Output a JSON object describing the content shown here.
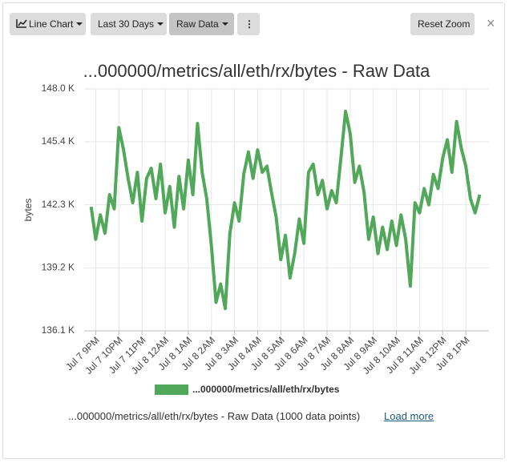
{
  "toolbar": {
    "buttons": [
      "Line Chart",
      "Last 30 Days",
      "Raw Data"
    ],
    "reset": "Reset Zoom"
  },
  "chart_data": {
    "type": "line",
    "title": "...000000/metrics/all/eth/rx/bytes - Raw Data",
    "y_label": "bytes",
    "xlim": [
      -0.5,
      17
    ],
    "xticks": [
      {
        "value": 0,
        "label": "Jul 7 9PM"
      },
      {
        "value": 1,
        "label": "Jul 7 10PM"
      },
      {
        "value": 2,
        "label": "Jul 7 11PM"
      },
      {
        "value": 3,
        "label": "Jul 8 12AM"
      },
      {
        "value": 4,
        "label": "Jul 8 1AM"
      },
      {
        "value": 5,
        "label": "Jul 8 2AM"
      },
      {
        "value": 6,
        "label": "Jul 8 3AM"
      },
      {
        "value": 7,
        "label": "Jul 8 4AM"
      },
      {
        "value": 8,
        "label": "Jul 8 5AM"
      },
      {
        "value": 9,
        "label": "Jul 8 6AM"
      },
      {
        "value": 10,
        "label": "Jul 8 7AM"
      },
      {
        "value": 11,
        "label": "Jul 8 8AM"
      },
      {
        "value": 12,
        "label": "Jul 8 9AM"
      },
      {
        "value": 13,
        "label": "Jul 8 10AM"
      },
      {
        "value": 14,
        "label": "Jul 8 11AM"
      },
      {
        "value": 15,
        "label": "Jul 8 12PM"
      },
      {
        "value": 16,
        "label": "Jul 8 1PM"
      }
    ],
    "ylim": [
      136100,
      148000
    ],
    "yticks": [
      {
        "value": 136100,
        "label": "136.1 K"
      },
      {
        "value": 139200,
        "label": "139.2 K"
      },
      {
        "value": 142300,
        "label": "142.3 K"
      },
      {
        "value": 145400,
        "label": "145.4 K"
      },
      {
        "value": 148000,
        "label": "148.0 K"
      }
    ],
    "grid": true,
    "x": [
      -0.2,
      0,
      0.2,
      0.4,
      0.6,
      0.8,
      1,
      1.2,
      1.4,
      1.6,
      1.8,
      2,
      2.2,
      2.4,
      2.6,
      2.8,
      3,
      3.2,
      3.4,
      3.6,
      3.8,
      4,
      4.2,
      4.4,
      4.6,
      4.8,
      5,
      5.2,
      5.4,
      5.6,
      5.8,
      6,
      6.2,
      6.4,
      6.6,
      6.8,
      7,
      7.2,
      7.4,
      7.6,
      7.8,
      8,
      8.2,
      8.4,
      8.6,
      8.8,
      9,
      9.2,
      9.4,
      9.6,
      9.8,
      10,
      10.2,
      10.4,
      10.6,
      10.8,
      11,
      11.2,
      11.4,
      11.6,
      11.8,
      12,
      12.2,
      12.4,
      12.6,
      12.8,
      13,
      13.2,
      13.4,
      13.6,
      13.8,
      14,
      14.2,
      14.4,
      14.6,
      14.8,
      15,
      15.2,
      15.4,
      15.6,
      15.8,
      16,
      16.2,
      16.4,
      16.6
    ],
    "series": [
      {
        "name": "...000000/metrics/all/eth/rx/bytes",
        "color": "#52a85a",
        "values": [
          142200,
          140600,
          141800,
          140900,
          142800,
          142100,
          146100,
          145000,
          143600,
          142400,
          143900,
          141500,
          143600,
          144100,
          142600,
          144300,
          141900,
          143200,
          141200,
          143700,
          142100,
          144500,
          142800,
          146300,
          143900,
          142600,
          140300,
          137500,
          138400,
          137200,
          140900,
          142400,
          141500,
          143800,
          144900,
          143600,
          145000,
          143900,
          144200,
          142900,
          141700,
          139600,
          140800,
          138700,
          139900,
          141600,
          140400,
          143900,
          144300,
          142800,
          143500,
          142100,
          143000,
          142400,
          144600,
          146900,
          145800,
          143400,
          144200,
          142900,
          140600,
          141700,
          139900,
          141200,
          140100,
          141500,
          140300,
          141800,
          140600,
          138300,
          142400,
          141900,
          143100,
          142300,
          143800,
          143100,
          144600,
          145500,
          143900,
          146400,
          145100,
          144200,
          142600,
          141900,
          142800
        ]
      }
    ]
  },
  "footer": {
    "text": "...000000/metrics/all/eth/rx/bytes - Raw Data (1000 data points)",
    "link": "Load more"
  }
}
